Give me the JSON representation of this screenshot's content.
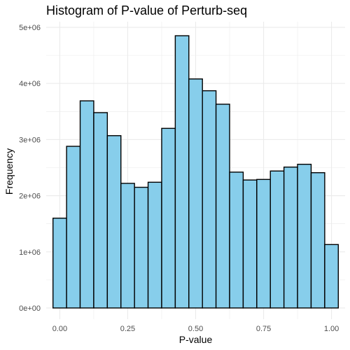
{
  "chart_data": {
    "type": "bar",
    "title": "Histogram of P-value of Perturb-seq",
    "xlabel": "P-value",
    "ylabel": "Frequency",
    "xlim": [
      -0.05,
      1.05
    ],
    "ylim": [
      -200000.0,
      5100000.0
    ],
    "bin_width": 0.05,
    "x_ticks": [
      0.0,
      0.25,
      0.5,
      0.75,
      1.0
    ],
    "x_tick_labels": [
      "0.00",
      "0.25",
      "0.50",
      "0.75",
      "1.00"
    ],
    "y_ticks": [
      0,
      1000000,
      2000000,
      3000000,
      4000000,
      5000000
    ],
    "y_tick_labels": [
      "0e+00",
      "1e+06",
      "2e+06",
      "3e+06",
      "4e+06",
      "5e+06"
    ],
    "bins": [
      0.0,
      0.05,
      0.1,
      0.15,
      0.2,
      0.25,
      0.3,
      0.35,
      0.4,
      0.45,
      0.5,
      0.55,
      0.6,
      0.65,
      0.7,
      0.75,
      0.8,
      0.85,
      0.9,
      0.95,
      1.0
    ],
    "values": [
      1600000,
      2880000,
      3690000,
      3480000,
      3070000,
      2220000,
      2150000,
      2240000,
      3200000,
      4850000,
      4080000,
      3870000,
      3630000,
      2420000,
      2280000,
      2290000,
      2440000,
      2510000,
      2560000,
      2410000,
      1130000
    ],
    "grid": true,
    "colors": {
      "fill": "#87CEEB",
      "stroke": "#000000",
      "grid": "#ebebeb",
      "text": "#4d4d4d",
      "background": "#ffffff"
    }
  }
}
